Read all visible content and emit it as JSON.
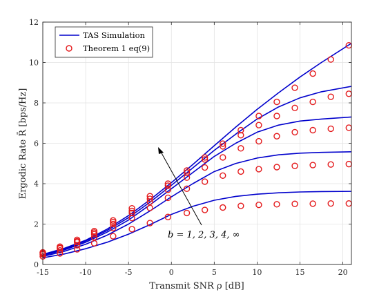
{
  "chart_data": {
    "type": "line",
    "xlabel": "Transmit SNR ρ [dB]",
    "ylabel": "Ergodic Rate R̄ [bps/Hz]",
    "xlim": [
      -15,
      21
    ],
    "ylim": [
      0,
      12
    ],
    "xticks": [
      "-15",
      "-10",
      "-5",
      "0",
      "5",
      "10",
      "15",
      "20"
    ],
    "xtick_values": [
      -15,
      -10,
      -5,
      0,
      5,
      10,
      15,
      20
    ],
    "yticks": [
      "0",
      "2",
      "4",
      "6",
      "8",
      "10",
      "12"
    ],
    "ytick_values": [
      0,
      2,
      4,
      6,
      8,
      10,
      12
    ],
    "grid": true,
    "legend_position": "top-left",
    "annotation": "b = 1, 2, 3, 4, ∞",
    "colors": {
      "simulation": "#0000cc",
      "theorem": "#e41a1c"
    },
    "legend": [
      {
        "label": "TAS Simulation",
        "marker": "line"
      },
      {
        "label": "Theorem 1 eq(9)",
        "marker": "circle"
      }
    ],
    "series": [
      {
        "b": "1",
        "sim_x": [
          -15,
          -12.5,
          -10,
          -7.5,
          -5,
          -2.5,
          0,
          2.5,
          5,
          7.5,
          10,
          12.5,
          15,
          17.5,
          21
        ],
        "sim_y": [
          0.33,
          0.52,
          0.78,
          1.1,
          1.5,
          1.97,
          2.48,
          2.88,
          3.18,
          3.37,
          3.48,
          3.55,
          3.59,
          3.61,
          3.62
        ],
        "markers_x": [
          -15,
          -13,
          -11,
          -9,
          -6.8,
          -4.6,
          -2.5,
          -0.4,
          1.8,
          3.9,
          6,
          8.1,
          10.2,
          12.3,
          14.4,
          16.5,
          18.6,
          20.7
        ],
        "markers_y": [
          0.4,
          0.55,
          0.75,
          1.05,
          1.4,
          1.75,
          2.05,
          2.35,
          2.55,
          2.7,
          2.82,
          2.9,
          2.95,
          2.98,
          3.0,
          3.01,
          3.02,
          3.02
        ]
      },
      {
        "b": "2",
        "sim_x": [
          -15,
          -12.5,
          -10,
          -7.5,
          -5,
          -2.5,
          0,
          2.5,
          5,
          7.5,
          10,
          12.5,
          15,
          17.5,
          21
        ],
        "sim_y": [
          0.4,
          0.65,
          1.0,
          1.45,
          2.0,
          2.65,
          3.35,
          4.0,
          4.6,
          5.0,
          5.27,
          5.43,
          5.51,
          5.55,
          5.58
        ],
        "markers_x": [
          -15,
          -13,
          -11,
          -9,
          -6.8,
          -4.6,
          -2.5,
          -0.4,
          1.8,
          3.9,
          6,
          8.1,
          10.2,
          12.3,
          14.4,
          16.5,
          18.6,
          20.7
        ],
        "markers_y": [
          0.5,
          0.7,
          0.95,
          1.35,
          1.8,
          2.3,
          2.8,
          3.3,
          3.75,
          4.1,
          4.4,
          4.6,
          4.72,
          4.82,
          4.88,
          4.92,
          4.95,
          4.97
        ]
      },
      {
        "b": "3",
        "sim_x": [
          -15,
          -12.5,
          -10,
          -7.5,
          -5,
          -2.5,
          0,
          2.5,
          5,
          7.5,
          10,
          12.5,
          15,
          17.5,
          21
        ],
        "sim_y": [
          0.45,
          0.72,
          1.1,
          1.6,
          2.2,
          2.95,
          3.75,
          4.55,
          5.35,
          6.0,
          6.55,
          6.9,
          7.1,
          7.2,
          7.3
        ],
        "markers_x": [
          -15,
          -13,
          -11,
          -9,
          -6.8,
          -4.6,
          -2.5,
          -0.4,
          1.8,
          3.9,
          6,
          8.1,
          10.2,
          12.3,
          14.4,
          16.5,
          18.6,
          20.7
        ],
        "markers_y": [
          0.55,
          0.8,
          1.1,
          1.5,
          2.0,
          2.55,
          3.1,
          3.7,
          4.3,
          4.8,
          5.3,
          5.75,
          6.1,
          6.35,
          6.55,
          6.65,
          6.72,
          6.77
        ]
      },
      {
        "b": "4",
        "sim_x": [
          -15,
          -12.5,
          -10,
          -7.5,
          -5,
          -2.5,
          0,
          2.5,
          5,
          7.5,
          10,
          12.5,
          15,
          17.5,
          21
        ],
        "sim_y": [
          0.48,
          0.76,
          1.16,
          1.68,
          2.32,
          3.08,
          3.92,
          4.78,
          5.65,
          6.45,
          7.2,
          7.8,
          8.25,
          8.55,
          8.82
        ],
        "markers_x": [
          -15,
          -13,
          -11,
          -9,
          -6.8,
          -4.6,
          -2.5,
          -0.4,
          1.8,
          3.9,
          6,
          8.1,
          10.2,
          12.3,
          14.4,
          16.5,
          18.6,
          20.7
        ],
        "markers_y": [
          0.58,
          0.82,
          1.15,
          1.58,
          2.1,
          2.65,
          3.25,
          3.9,
          4.55,
          5.2,
          5.85,
          6.4,
          6.9,
          7.35,
          7.75,
          8.05,
          8.3,
          8.45
        ]
      },
      {
        "b": "∞",
        "sim_x": [
          -15,
          -12.5,
          -10,
          -7.5,
          -5,
          -2.5,
          0,
          2.5,
          5,
          7.5,
          10,
          12.5,
          15,
          17.5,
          21
        ],
        "sim_y": [
          0.5,
          0.8,
          1.2,
          1.75,
          2.42,
          3.2,
          4.05,
          4.95,
          5.88,
          6.8,
          7.68,
          8.5,
          9.28,
          10.0,
          10.95
        ],
        "markers_x": [
          -15,
          -13,
          -11,
          -9,
          -6.8,
          -4.6,
          -2.5,
          -0.4,
          1.8,
          3.9,
          6,
          8.1,
          10.2,
          12.3,
          14.4,
          16.5,
          18.6,
          20.7
        ],
        "markers_y": [
          0.6,
          0.88,
          1.22,
          1.65,
          2.18,
          2.78,
          3.38,
          4.0,
          4.65,
          5.3,
          5.98,
          6.65,
          7.35,
          8.05,
          8.75,
          9.45,
          10.15,
          10.85
        ]
      }
    ]
  }
}
